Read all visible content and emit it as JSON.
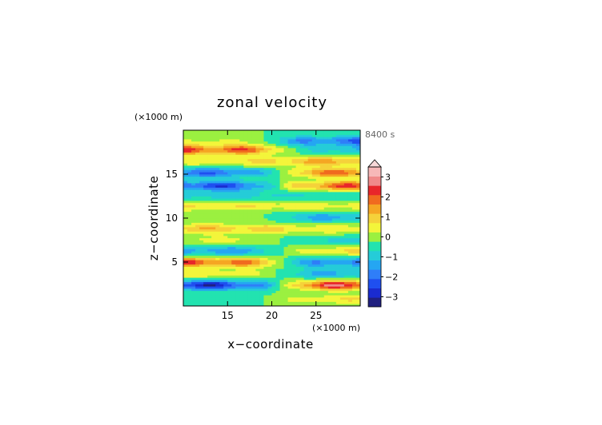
{
  "chart_data": {
    "type": "heatmap",
    "title": "zonal velocity",
    "xlabel": "x−coordinate",
    "ylabel": "z−coordinate",
    "x_unit": "(×1000 m)",
    "y_unit": "(×1000 m)",
    "time_label": "8400 s",
    "xlim": [
      10,
      30
    ],
    "ylim": [
      0,
      20
    ],
    "x_ticks": [
      15,
      20,
      25
    ],
    "y_ticks": [
      5,
      10,
      15
    ],
    "colorbar": {
      "ticks": [
        3,
        2,
        1,
        0,
        -1,
        -2,
        -3
      ],
      "tick_labels": [
        "3",
        "2",
        "1",
        "0",
        "−1",
        "−2",
        "−3"
      ],
      "range": [
        -3.5,
        3.5
      ],
      "levels": 14,
      "colors": [
        "#202080",
        "#1a2bd0",
        "#1f4ff0",
        "#2f7ef8",
        "#25a6f2",
        "#25ccd8",
        "#22e3b0",
        "#9bf040",
        "#f3f53a",
        "#f5d23a",
        "#f5a623",
        "#f06a1f",
        "#e8262a",
        "#f08a8a",
        "#f7b8b8"
      ]
    },
    "bands": [
      {
        "z": 0.8,
        "left": -0.3,
        "right": 0.9
      },
      {
        "z": 2.4,
        "left": -2.6,
        "right": 2.8
      },
      {
        "z": 3.7,
        "left": 0.8,
        "right": -1.1
      },
      {
        "z": 5.0,
        "left": 2.3,
        "right": -1.7
      },
      {
        "z": 6.3,
        "left": -1.3,
        "right": 1.0
      },
      {
        "z": 7.5,
        "left": 0.6,
        "right": -0.6
      },
      {
        "z": 8.8,
        "left": 1.3,
        "right": 0.8
      },
      {
        "z": 10.1,
        "left": 0.4,
        "right": -1.2
      },
      {
        "z": 11.4,
        "left": 0.9,
        "right": 0.7
      },
      {
        "z": 12.6,
        "left": -0.7,
        "right": -0.4
      },
      {
        "z": 13.7,
        "left": -2.2,
        "right": 2.3
      },
      {
        "z": 15.2,
        "left": -1.8,
        "right": 2.1
      },
      {
        "z": 16.5,
        "left": 0.8,
        "right": 1.6
      },
      {
        "z": 17.8,
        "left": 2.4,
        "right": -0.8
      },
      {
        "z": 18.8,
        "left": 0.5,
        "right": -1.8
      }
    ]
  }
}
